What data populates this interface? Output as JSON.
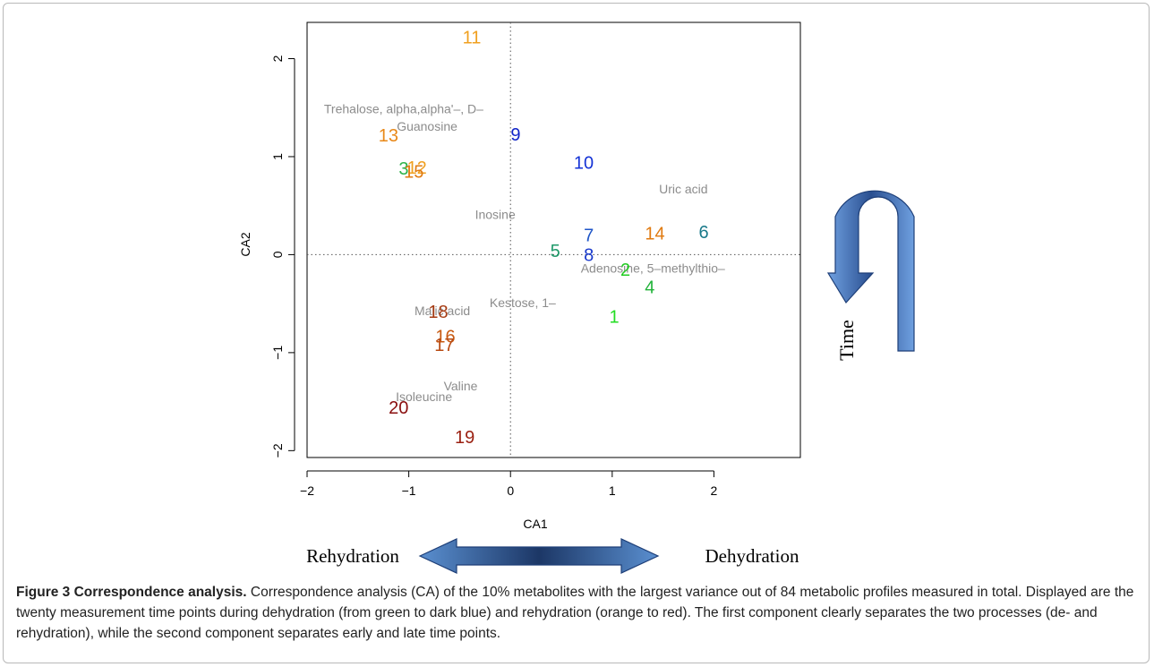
{
  "chart_data": {
    "type": "scatter",
    "xlabel": "CA1",
    "ylabel": "CA2",
    "xlim": [
      -2.0,
      2.85
    ],
    "ylim": [
      -2.07,
      2.37
    ],
    "x_ticks": [
      -2,
      -1,
      0,
      1,
      2
    ],
    "y_ticks": [
      -2,
      -1,
      0,
      1,
      2
    ],
    "reference_lines": {
      "x": 0,
      "y": 0,
      "style": "dotted"
    },
    "grid": false,
    "points": [
      {
        "label": "1",
        "x": 1.02,
        "y": -0.63,
        "color": "#22dd22"
      },
      {
        "label": "2",
        "x": 1.13,
        "y": -0.15,
        "color": "#22cc22"
      },
      {
        "label": "3",
        "x": -1.05,
        "y": 0.88,
        "color": "#2db34a"
      },
      {
        "label": "4",
        "x": 1.37,
        "y": -0.33,
        "color": "#22b33a"
      },
      {
        "label": "5",
        "x": 0.44,
        "y": 0.04,
        "color": "#1f9a6a"
      },
      {
        "label": "6",
        "x": 1.9,
        "y": 0.23,
        "color": "#1a7a8a"
      },
      {
        "label": "7",
        "x": 0.77,
        "y": 0.2,
        "color": "#1f56c8"
      },
      {
        "label": "8",
        "x": 0.77,
        "y": 0.0,
        "color": "#1a3acc"
      },
      {
        "label": "9",
        "x": 0.05,
        "y": 1.23,
        "color": "#1024c8"
      },
      {
        "label": "10",
        "x": 0.72,
        "y": 0.94,
        "color": "#1533d6"
      },
      {
        "label": "11",
        "x": -0.38,
        "y": 2.22,
        "color": "#f0a020"
      },
      {
        "label": "12",
        "x": -0.92,
        "y": 0.89,
        "color": "#f0a020"
      },
      {
        "label": "13",
        "x": -1.2,
        "y": 1.22,
        "color": "#e88818"
      },
      {
        "label": "14",
        "x": 1.42,
        "y": 0.22,
        "color": "#e07a10"
      },
      {
        "label": "15",
        "x": -0.95,
        "y": 0.85,
        "color": "#e07a10"
      },
      {
        "label": "16",
        "x": -0.64,
        "y": -0.83,
        "color": "#c85a12"
      },
      {
        "label": "17",
        "x": -0.65,
        "y": -0.92,
        "color": "#b84a12"
      },
      {
        "label": "18",
        "x": -0.71,
        "y": -0.58,
        "color": "#a53a12"
      },
      {
        "label": "19",
        "x": -0.45,
        "y": -1.86,
        "color": "#9a1f10"
      },
      {
        "label": "20",
        "x": -1.1,
        "y": -1.56,
        "color": "#8a0f0f"
      }
    ],
    "annotations": [
      {
        "text": "Trehalose, alpha,alpha'–, D–",
        "x": -1.05,
        "y": 1.49
      },
      {
        "text": "Guanosine",
        "x": -0.82,
        "y": 1.31
      },
      {
        "text": "Uric acid",
        "x": 1.7,
        "y": 0.67
      },
      {
        "text": "Inosine",
        "x": -0.15,
        "y": 0.41
      },
      {
        "text": "Adenosine, 5–methylthio–",
        "x": 1.4,
        "y": -0.14
      },
      {
        "text": "Kestose, 1–",
        "x": 0.12,
        "y": -0.49
      },
      {
        "text": "Malic acid",
        "x": -0.67,
        "y": -0.57
      },
      {
        "text": "Valine",
        "x": -0.49,
        "y": -1.34
      },
      {
        "text": "Isoleucine",
        "x": -0.85,
        "y": -1.45
      }
    ],
    "annotation_color": "#8c8c8c"
  },
  "diagram": {
    "time_label": "Time",
    "rehydration_label": "Rehydration",
    "dehydration_label": "Dehydration"
  },
  "caption": {
    "figure_label": "Figure 3",
    "title": "Correspondence analysis.",
    "text": "Correspondence analysis (CA) of the 10% metabolites with the largest variance out of 84 metabolic profiles measured in total. Displayed are the twenty measurement time points during dehydration (from green to dark blue) and rehydration (orange to red). The first component clearly separates the two processes (de- and rehydration), while the second component separates early and late time points."
  }
}
